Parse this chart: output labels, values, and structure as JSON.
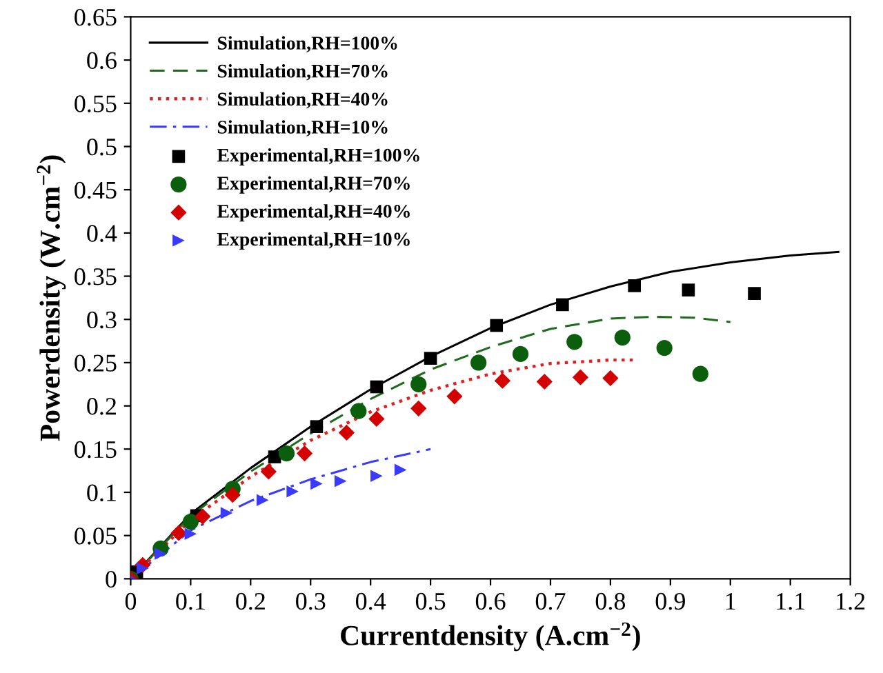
{
  "chart_data": {
    "type": "line",
    "xlabel": "Currentdensity (A.cm$^{−2}$)",
    "ylabel": "Powerdensity (W.cm$^{−2}$)",
    "xlim": [
      0,
      1.2
    ],
    "ylim": [
      0,
      0.65
    ],
    "xticks": [
      0,
      0.1,
      0.2,
      0.3,
      0.4,
      0.5,
      0.6,
      0.7,
      0.8,
      0.9,
      1,
      1.1,
      1.2
    ],
    "yticks": [
      0,
      0.05,
      0.1,
      0.15,
      0.2,
      0.25,
      0.3,
      0.35,
      0.4,
      0.45,
      0.5,
      0.55,
      0.6,
      0.65
    ],
    "grid": false,
    "legend": "top left",
    "series": [
      {
        "name": "Simulation,RH=100%",
        "color": "#000000",
        "line_style": "solid",
        "marker": "none",
        "x": [
          0,
          0.1,
          0.2,
          0.3,
          0.4,
          0.5,
          0.6,
          0.7,
          0.8,
          0.9,
          1.0,
          1.1,
          1.18
        ],
        "values": [
          0,
          0.075,
          0.128,
          0.176,
          0.219,
          0.257,
          0.29,
          0.317,
          0.338,
          0.355,
          0.366,
          0.374,
          0.378
        ]
      },
      {
        "name": "Simulation,RH=70%",
        "color": "#1e6b1e",
        "line_style": "dashed",
        "marker": "none",
        "x": [
          0,
          0.1,
          0.2,
          0.3,
          0.4,
          0.5,
          0.6,
          0.7,
          0.8,
          0.87,
          0.94,
          1.0
        ],
        "values": [
          0,
          0.073,
          0.124,
          0.168,
          0.208,
          0.242,
          0.268,
          0.289,
          0.301,
          0.303,
          0.302,
          0.297
        ]
      },
      {
        "name": "Simulation,RH=40%",
        "color": "#e02020",
        "line_style": "dotted",
        "marker": "none",
        "x": [
          0,
          0.1,
          0.2,
          0.3,
          0.4,
          0.5,
          0.6,
          0.7,
          0.8,
          0.84
        ],
        "values": [
          0,
          0.068,
          0.118,
          0.16,
          0.193,
          0.218,
          0.237,
          0.249,
          0.253,
          0.253
        ]
      },
      {
        "name": "Simulation,RH=10%",
        "color": "#3a3aff",
        "line_style": "dashdot",
        "marker": "none",
        "x": [
          0,
          0.1,
          0.2,
          0.3,
          0.4,
          0.5
        ],
        "values": [
          0,
          0.056,
          0.09,
          0.115,
          0.135,
          0.15
        ]
      },
      {
        "name": "Experimental,RH=100%",
        "type": "scatter",
        "color": "#000000",
        "marker": "square",
        "x": [
          0.01,
          0.11,
          0.24,
          0.31,
          0.41,
          0.5,
          0.61,
          0.72,
          0.84,
          0.93,
          1.04
        ],
        "values": [
          0.008,
          0.073,
          0.141,
          0.176,
          0.222,
          0.255,
          0.293,
          0.317,
          0.339,
          0.334,
          0.33
        ]
      },
      {
        "name": "Experimental,RH=70%",
        "type": "scatter",
        "color": "#0b5e0b",
        "marker": "circle",
        "x": [
          0,
          0.05,
          0.1,
          0.17,
          0.26,
          0.38,
          0.48,
          0.58,
          0.65,
          0.74,
          0.82,
          0.89,
          0.95
        ],
        "values": [
          0,
          0.035,
          0.066,
          0.104,
          0.145,
          0.194,
          0.225,
          0.25,
          0.26,
          0.274,
          0.279,
          0.267,
          0.237
        ]
      },
      {
        "name": "Experimental,RH=40%",
        "type": "scatter",
        "color": "#d40000",
        "marker": "diamond",
        "x": [
          0,
          0.02,
          0.08,
          0.12,
          0.17,
          0.23,
          0.29,
          0.36,
          0.41,
          0.48,
          0.54,
          0.62,
          0.69,
          0.75,
          0.8
        ],
        "values": [
          0,
          0.016,
          0.053,
          0.072,
          0.097,
          0.124,
          0.145,
          0.169,
          0.185,
          0.197,
          0.211,
          0.229,
          0.228,
          0.233,
          0.232
        ]
      },
      {
        "name": "Experimental,RH=10%",
        "type": "scatter",
        "color": "#3a3aff",
        "marker": "triangle",
        "x": [
          0,
          0.02,
          0.05,
          0.1,
          0.16,
          0.22,
          0.27,
          0.31,
          0.35,
          0.41,
          0.45
        ],
        "values": [
          0,
          0.012,
          0.029,
          0.052,
          0.076,
          0.091,
          0.101,
          0.11,
          0.113,
          0.119,
          0.126
        ]
      }
    ]
  }
}
